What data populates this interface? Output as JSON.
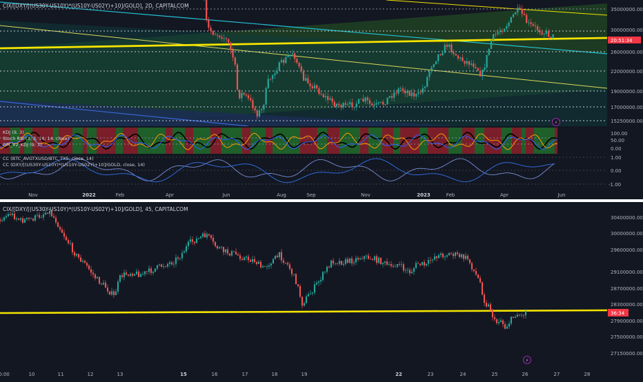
{
  "colors": {
    "background": "#131722",
    "up": "#26a69a",
    "down": "#ef5350",
    "trendline": "#f5e400",
    "channel": "#22c3d6",
    "price_tag": "#f23645"
  },
  "top": {
    "symbol": "CIX/[DXY/[(US30Y-US10Y)*(US10Y-US02Y)+10]/GOLD], 2D, CAPITALCOM",
    "price_label": "20:51:34",
    "yticks": [
      "35000000.00",
      "30000000.00",
      "26000000.00",
      "22000000.00",
      "19000000.00",
      "17000000.00",
      "15250000.00"
    ],
    "indicators": [
      "KDJ (9, 3)",
      "Stoch RSI (3, 3, 14, 14, close)",
      "GM_V2_KDJ (9, 3)",
      "CC (BTC_AVGTXUSD/BTC_TXS, close, 14)",
      "CC (DXY/[(US30Y-US10Y)*(US10Y-US02Y)+10]/GOLD, close, 14)"
    ],
    "osc_yticks": [
      "100.00",
      "50.00",
      "0.00"
    ],
    "cc_yticks": [
      "1.00",
      "0.00",
      "-1.00"
    ],
    "xticks": [
      "Nov",
      "2022",
      "Feb",
      "Apr",
      "Jun",
      "Aug",
      "Sep",
      "Nov",
      "2023",
      "Feb",
      "Apr",
      "Jun"
    ],
    "events_icon": "lightning-icon"
  },
  "bottom": {
    "symbol": "CIX/[DXY/[(US30Y-US10Y)*(US10Y-US02Y)+10]/GOLD], 45, CAPITALCOM",
    "price_label": "36:34",
    "yticks": [
      "30400000.00",
      "30000000.00",
      "29600000.00",
      "29100000.00",
      "28700000.00",
      "28300000.00",
      "27900000.00",
      "27500000.00",
      "27150000.00"
    ],
    "xticks": [
      "0:00",
      "10",
      "11",
      "12",
      "13",
      "15",
      "16",
      "17",
      "18",
      "19",
      "22",
      "23",
      "24",
      "25",
      "26",
      "27",
      "28"
    ],
    "events_icon": "lightning-icon"
  }
}
